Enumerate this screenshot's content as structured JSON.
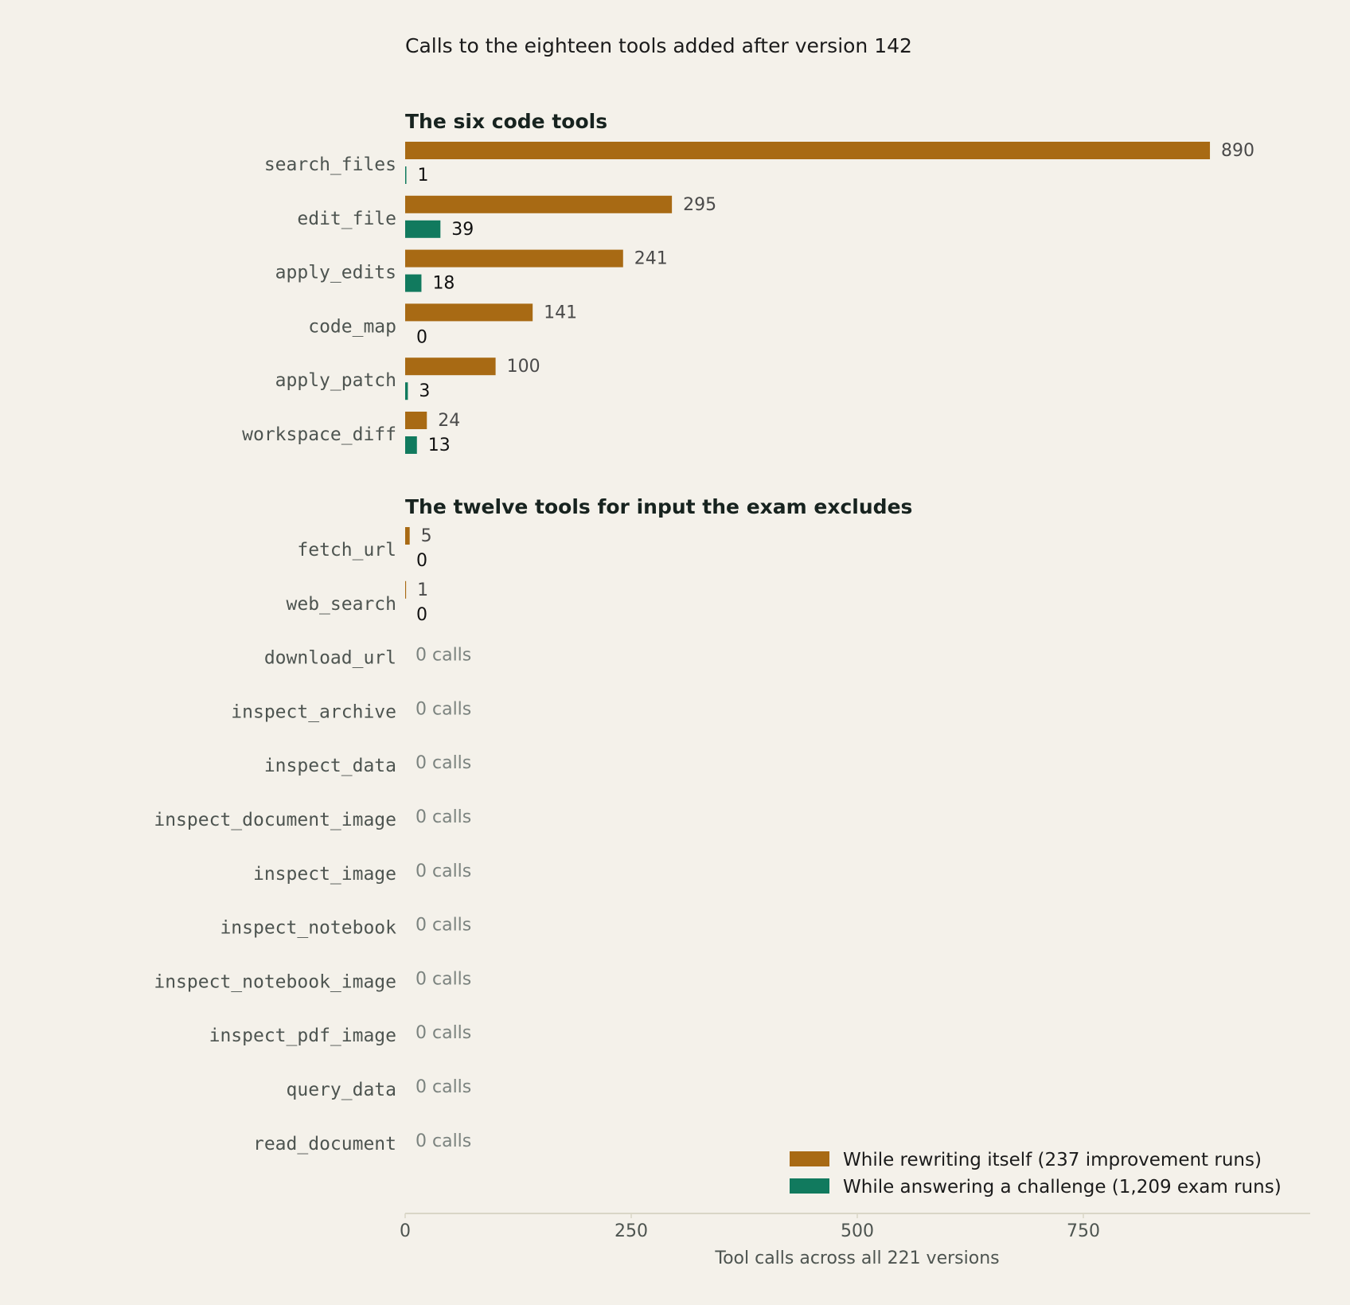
{
  "chart_data": {
    "type": "bar",
    "orientation": "horizontal",
    "title": "Calls to the eighteen tools added after version 142",
    "xlabel": "Tool calls across all 221 versions",
    "xlim": [
      0,
      1000
    ],
    "xticks": [
      0,
      250,
      500,
      750
    ],
    "zero_label": "0 calls",
    "legend_position": "bottom-right",
    "grid": false,
    "series": [
      {
        "key": "rewrite",
        "name": "While rewriting itself (237 improvement runs)",
        "color": "#a86a14"
      },
      {
        "key": "exam",
        "name": "While answering a challenge (1,209 exam runs)",
        "color": "#117a5e"
      }
    ],
    "groups": [
      {
        "title": "The six code tools",
        "categories": [
          {
            "name": "search_files",
            "rewrite": 890,
            "exam": 1
          },
          {
            "name": "edit_file",
            "rewrite": 295,
            "exam": 39
          },
          {
            "name": "apply_edits",
            "rewrite": 241,
            "exam": 18
          },
          {
            "name": "code_map",
            "rewrite": 141,
            "exam": 0
          },
          {
            "name": "apply_patch",
            "rewrite": 100,
            "exam": 3
          },
          {
            "name": "workspace_diff",
            "rewrite": 24,
            "exam": 13
          }
        ]
      },
      {
        "title": "The twelve tools for input the exam excludes",
        "categories": [
          {
            "name": "fetch_url",
            "rewrite": 5,
            "exam": 0
          },
          {
            "name": "web_search",
            "rewrite": 1,
            "exam": 0
          },
          {
            "name": "download_url",
            "rewrite": 0,
            "exam": 0
          },
          {
            "name": "inspect_archive",
            "rewrite": 0,
            "exam": 0
          },
          {
            "name": "inspect_data",
            "rewrite": 0,
            "exam": 0
          },
          {
            "name": "inspect_document_image",
            "rewrite": 0,
            "exam": 0
          },
          {
            "name": "inspect_image",
            "rewrite": 0,
            "exam": 0
          },
          {
            "name": "inspect_notebook",
            "rewrite": 0,
            "exam": 0
          },
          {
            "name": "inspect_notebook_image",
            "rewrite": 0,
            "exam": 0
          },
          {
            "name": "inspect_pdf_image",
            "rewrite": 0,
            "exam": 0
          },
          {
            "name": "query_data",
            "rewrite": 0,
            "exam": 0
          },
          {
            "name": "read_document",
            "rewrite": 0,
            "exam": 0
          }
        ]
      }
    ]
  }
}
